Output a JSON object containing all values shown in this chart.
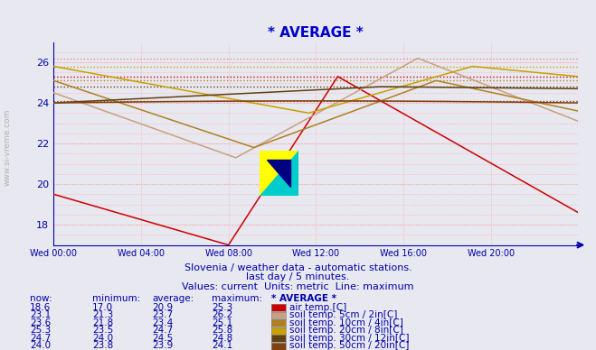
{
  "title": "* AVERAGE *",
  "title_color": "#0000cc",
  "bg_color": "#e8e8f0",
  "ylim": [
    17.0,
    27.0
  ],
  "xlim": [
    0,
    288
  ],
  "xtick_positions": [
    0,
    48,
    96,
    144,
    192,
    240
  ],
  "xtick_labels": [
    "Wed 00:00",
    "Wed 04:00",
    "Wed 08:00",
    "Wed 12:00",
    "Wed 16:00",
    "Wed 20:00"
  ],
  "ytick_positions": [
    18,
    20,
    22,
    24,
    26
  ],
  "ytick_labels": [
    "18",
    "20",
    "22",
    "24",
    "26"
  ],
  "subtitle1": "Slovenia / weather data - automatic stations.",
  "subtitle2": "last day / 5 minutes.",
  "subtitle3": "Values: current  Units: metric  Line: maximum",
  "legend": [
    {
      "label": "air temp.[C]",
      "color": "#cc0000",
      "now": "18.6",
      "min": "17.0",
      "avg": "20.9",
      "max": "25.3"
    },
    {
      "label": "soil temp. 5cm / 2in[C]",
      "color": "#c8a080",
      "now": "23.1",
      "min": "21.3",
      "avg": "23.7",
      "max": "26.2"
    },
    {
      "label": "soil temp. 10cm / 4in[C]",
      "color": "#b08020",
      "now": "23.6",
      "min": "21.8",
      "avg": "23.4",
      "max": "25.1"
    },
    {
      "label": "soil temp. 20cm / 8in[C]",
      "color": "#c8a000",
      "now": "25.3",
      "min": "23.5",
      "avg": "24.7",
      "max": "25.8"
    },
    {
      "label": "soil temp. 30cm / 12in[C]",
      "color": "#604010",
      "now": "24.7",
      "min": "24.0",
      "avg": "24.5",
      "max": "24.8"
    },
    {
      "label": "soil temp. 50cm / 20in[C]",
      "color": "#804010",
      "now": "24.0",
      "min": "23.8",
      "avg": "23.9",
      "max": "24.1"
    }
  ],
  "axis_color": "#0000aa"
}
